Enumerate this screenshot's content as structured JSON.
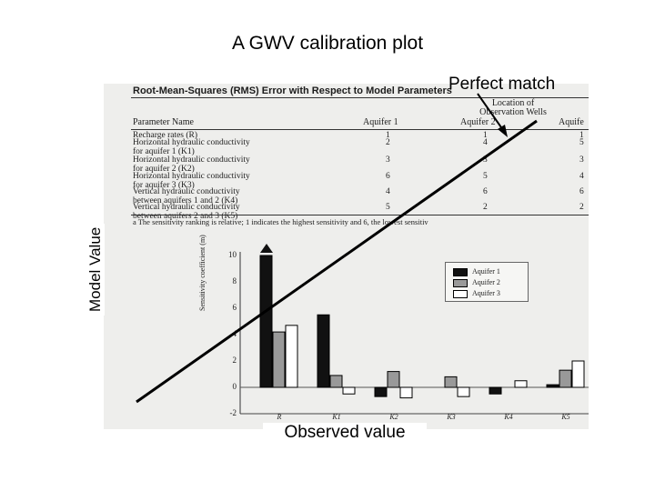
{
  "slide": {
    "title": "A GWV calibration plot",
    "perfect_match_label": "Perfect match",
    "y_axis_label": "Model Value",
    "x_axis_label": "Observed value"
  },
  "scan_table": {
    "caption": "Root-Mean-Squares (RMS) Error with Respect to Model Parameters",
    "location_header": [
      "Location of",
      "Observation Wells"
    ],
    "columns": [
      "Parameter Name",
      "Aquifer 1",
      "Aquifer 2",
      "Aquife"
    ],
    "rows": [
      {
        "name": [
          "Recharge rates (R)"
        ],
        "values": [
          "1",
          "1",
          "1"
        ]
      },
      {
        "name": [
          "Horizontal hydraulic conductivity",
          "  for aquifer 1 (K1)"
        ],
        "values": [
          "2",
          "4",
          "5"
        ]
      },
      {
        "name": [
          "Horizontal hydraulic conductivity",
          "  for aquifer 2 (K2)"
        ],
        "values": [
          "3",
          "3",
          "3"
        ]
      },
      {
        "name": [
          "Horizontal hydraulic conductivity",
          "  for aquifer 3 (K3)"
        ],
        "values": [
          "6",
          "5",
          "4"
        ]
      },
      {
        "name": [
          "Vertical hydraulic conductivity",
          "  between aquifers 1 and 2 (K4)"
        ],
        "values": [
          "4",
          "6",
          "6"
        ]
      },
      {
        "name": [
          "Vertical hydraulic conductivity",
          "  between aquifers 2 and 3 (K5)"
        ],
        "values": [
          "5",
          "2",
          "2"
        ]
      }
    ],
    "footnote": "a The sensitivity ranking is relative; 1 indicates the highest sensitivity and 6, the lowest sensitiv"
  },
  "chart_data": {
    "type": "bar",
    "categories": [
      "R",
      "K1",
      "K2",
      "K3",
      "K4",
      "K5"
    ],
    "ylabel": "Sensitivity coefficient (m)",
    "ylim": [
      -2,
      10
    ],
    "yticks": [
      "10",
      "8",
      "6",
      "4",
      "2",
      "0",
      "-2"
    ],
    "legend_placement": "top-right",
    "series": [
      {
        "name": "Aquifer 1",
        "color": "#111111",
        "values": [
          10,
          5.5,
          -0.7,
          0,
          -0.5,
          0.2
        ]
      },
      {
        "name": "Aquifer 2",
        "color": "#999999",
        "values": [
          4.2,
          0.9,
          1.2,
          0.8,
          0,
          1.3
        ]
      },
      {
        "name": "Aquifer 3",
        "color": "#ffffff",
        "values": [
          4.7,
          -0.5,
          -0.8,
          -0.7,
          0.5,
          2.0
        ]
      }
    ]
  },
  "colors": {
    "line": "#000000",
    "scan_background": "#eeeeec"
  }
}
